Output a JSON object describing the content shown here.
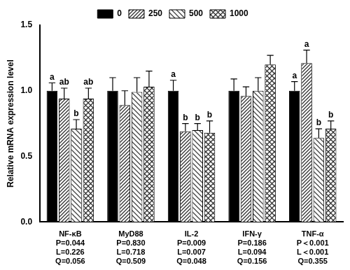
{
  "chart_data": {
    "type": "bar",
    "y_label": "Relative mRNA expression level",
    "categories": [
      "NF-κB",
      "MyD88",
      "IL-2",
      "IFN-γ",
      "TNF-α"
    ],
    "category_notes": [
      [
        "P=0.044",
        "L=0.226",
        "Q=0.056"
      ],
      [
        "P=0.830",
        "L=0.718",
        "Q=0.509"
      ],
      [
        "P=0.009",
        "L=0.007",
        "Q=0.048"
      ],
      [
        "P=0.186",
        "L=0.094",
        "Q=0.156"
      ],
      [
        "P＜0.001",
        "L＜0.001",
        "Q=0.355"
      ]
    ],
    "series": [
      {
        "name": "0",
        "color": "#000000",
        "values": [
          1.0,
          1.0,
          1.0,
          1.0,
          1.0
        ],
        "errors": [
          0.06,
          0.1,
          0.08,
          0.09,
          0.07
        ],
        "letters": [
          "a",
          null,
          "a",
          null,
          "a"
        ]
      },
      {
        "name": "250",
        "color": "#333333",
        "values": [
          0.94,
          0.89,
          0.69,
          0.96,
          1.21
        ],
        "errors": [
          0.08,
          0.11,
          0.06,
          0.07,
          0.1
        ],
        "letters": [
          "ab",
          null,
          "b",
          null,
          "a"
        ]
      },
      {
        "name": "500",
        "color": "#444444",
        "values": [
          0.71,
          0.99,
          0.7,
          1.0,
          0.64
        ],
        "errors": [
          0.07,
          0.11,
          0.05,
          0.1,
          0.07
        ],
        "letters": [
          "b",
          null,
          "b",
          null,
          "b"
        ]
      },
      {
        "name": "1000",
        "color": "#333333",
        "values": [
          0.94,
          1.03,
          0.68,
          1.2,
          0.71
        ],
        "errors": [
          0.08,
          0.12,
          0.09,
          0.07,
          0.06
        ],
        "letters": [
          "ab",
          null,
          "b",
          null,
          "b"
        ]
      }
    ],
    "ylim": [
      0,
      1.5
    ],
    "yticks": [
      {
        "value": 0,
        "label": "0.0"
      },
      {
        "value": 0.5,
        "label": "0.5"
      },
      {
        "value": 1.0,
        "label": "1.0"
      },
      {
        "value": 1.5,
        "label": "1.5"
      }
    ],
    "grid": false,
    "legend": "top"
  }
}
